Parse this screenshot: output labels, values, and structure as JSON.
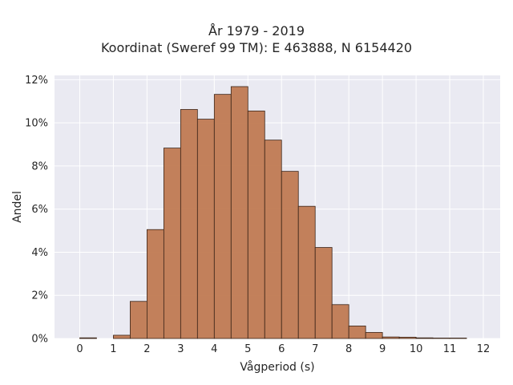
{
  "chart_data": {
    "type": "bar",
    "title": "År 1979 - 2019",
    "subtitle": "Koordinat (Sweref 99 TM): E 463888, N 6154420",
    "xlabel": "Vågperiod (s)",
    "ylabel": "Andel",
    "xlim": [
      -0.75,
      12.5
    ],
    "ylim": [
      0,
      12.2
    ],
    "grid": true,
    "bar_width": 0.5,
    "bar_color": "#c07a52",
    "edge_color": "#3a2418",
    "plot_bg": "#eaeaf2",
    "x_ticks": [
      0,
      1,
      2,
      3,
      4,
      5,
      6,
      7,
      8,
      9,
      10,
      11,
      12
    ],
    "x_tick_labels": [
      "0",
      "1",
      "2",
      "3",
      "4",
      "5",
      "6",
      "7",
      "8",
      "9",
      "10",
      "11",
      "12"
    ],
    "y_ticks": [
      0,
      2,
      4,
      6,
      8,
      10,
      12
    ],
    "y_tick_labels": [
      "0%",
      "2%",
      "4%",
      "6%",
      "8%",
      "10%",
      "12%"
    ],
    "bin_starts": [
      0,
      0.5,
      1,
      1.5,
      2,
      2.5,
      3,
      3.5,
      4,
      4.5,
      5,
      5.5,
      6,
      6.5,
      7,
      7.5,
      8,
      8.5,
      9,
      9.5,
      10,
      10.5,
      11,
      11.5
    ],
    "values": [
      0.03,
      0.0,
      0.15,
      1.72,
      5.05,
      8.83,
      10.62,
      10.17,
      11.32,
      11.68,
      10.55,
      9.2,
      7.75,
      6.13,
      4.22,
      1.57,
      0.58,
      0.28,
      0.07,
      0.06,
      0.03,
      0.02,
      0.02,
      0.0
    ]
  }
}
